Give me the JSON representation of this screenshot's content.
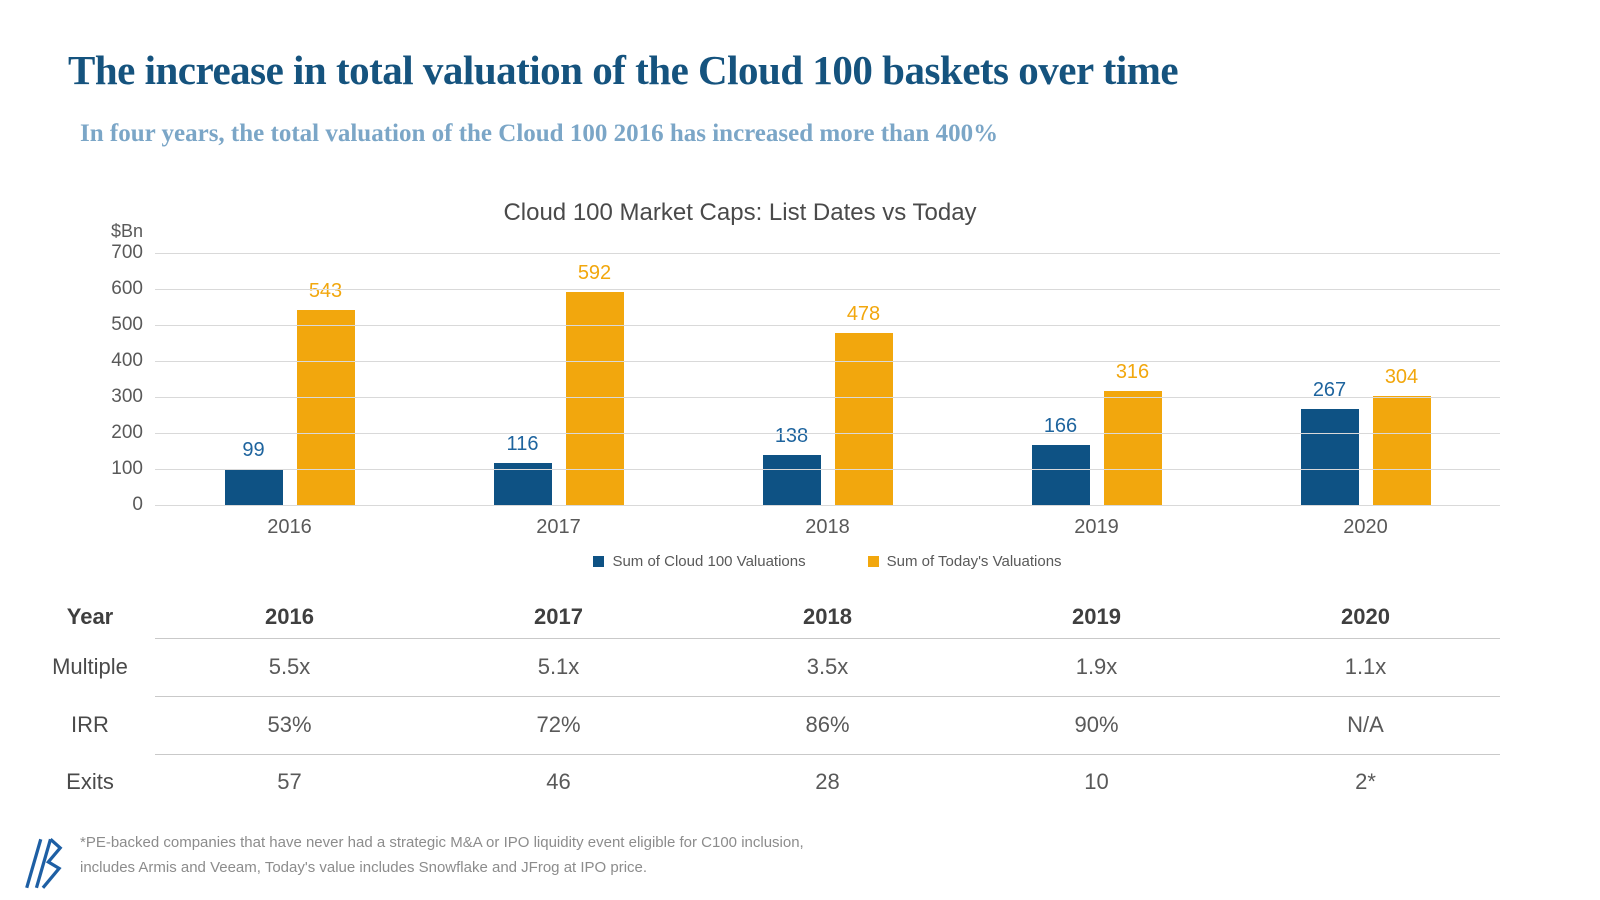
{
  "header": {
    "title": "The increase in total valuation of the Cloud 100 baskets over time",
    "subtitle": "In four years, the total valuation of the Cloud 100 2016 has increased more than 400%"
  },
  "chart_data": {
    "type": "bar",
    "title": "Cloud 100 Market Caps: List Dates vs Today",
    "unit_label": "$Bn",
    "categories": [
      "2016",
      "2017",
      "2018",
      "2019",
      "2020"
    ],
    "series": [
      {
        "name": "Sum of Cloud 100 Valuations",
        "color": "#0E5284",
        "label_color": "#1E649E",
        "values": [
          99,
          116,
          138,
          166,
          267
        ]
      },
      {
        "name": "Sum of Today's Valuations",
        "color": "#F2A70D",
        "label_color": "#F2A70D",
        "values": [
          543,
          592,
          478,
          316,
          304
        ]
      }
    ],
    "ylim": [
      0,
      700
    ],
    "yticks": [
      700,
      600,
      500,
      400,
      300,
      200,
      100,
      0
    ],
    "grid": true,
    "legend_position": "bottom",
    "data_labels": true
  },
  "table": {
    "row_label_header": "Year",
    "columns": [
      "2016",
      "2017",
      "2018",
      "2019",
      "2020"
    ],
    "rows": [
      {
        "label": "Multiple",
        "values": [
          "5.5x",
          "5.1x",
          "3.5x",
          "1.9x",
          "1.1x"
        ]
      },
      {
        "label": "IRR",
        "values": [
          "53%",
          "72%",
          "86%",
          "90%",
          "N/A"
        ]
      },
      {
        "label": "Exits",
        "values": [
          "57",
          "46",
          "28",
          "10",
          "2*"
        ]
      }
    ]
  },
  "footnote": {
    "line1": "*PE-backed companies that have never had a strategic M&A or IPO liquidity event eligible for C100 inclusion,",
    "line2": "includes Armis and Veeam,  Today's value includes Snowflake and JFrog at IPO price."
  },
  "colors": {
    "title_blue": "#15537E",
    "subtitle_blue": "#7BA6C7",
    "axis_gray": "#595959",
    "gridline_gray": "#D9D9D9",
    "table_rule_gray": "#C9C9C9",
    "footnote_gray": "#8C8C8C",
    "logo_blue": "#1E5FA4"
  }
}
